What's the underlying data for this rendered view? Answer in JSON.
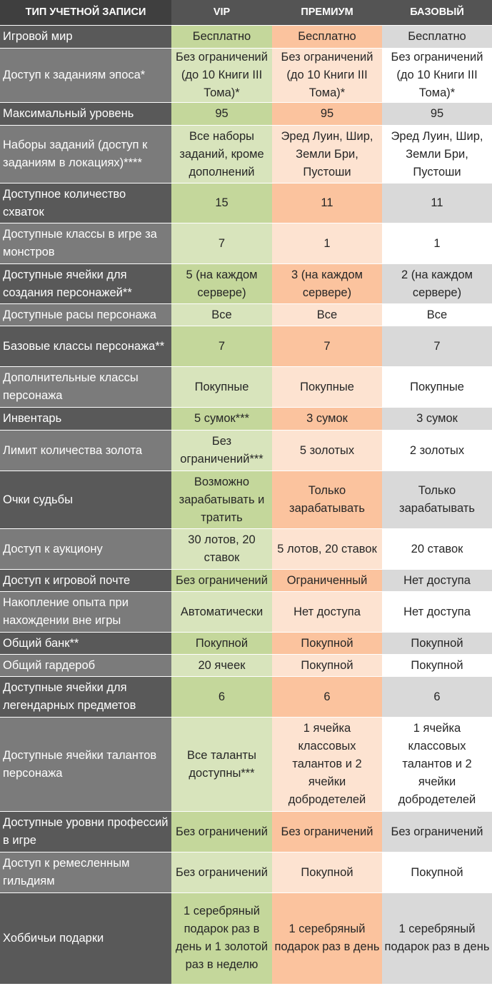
{
  "header": {
    "col0": "ТИП УЧЕТНОЙ ЗАПИСИ",
    "col1": "VIP",
    "col2": "ПРЕМИУМ",
    "col3": "БАЗОВЫЙ"
  },
  "rows": [
    {
      "label": "Игровой мир",
      "vip": "Бесплатно",
      "premium": "Бесплатно",
      "basic": "Бесплатно"
    },
    {
      "label": "Доступ к заданиям эпоса*",
      "vip": "Без ограничений (до 10 Книги III Тома)*",
      "premium": "Без ограничений (до 10 Книги III Тома)*",
      "basic": "Без ограничений (до 10 Книги III Тома)*"
    },
    {
      "label": "Максимальный уровень",
      "vip": "95",
      "premium": "95",
      "basic": "95"
    },
    {
      "label": "Наборы заданий (доступ к заданиям в локациях)****",
      "vip": "Все наборы заданий, кроме дополнений",
      "premium": "Эред Луин, Шир, Земли Бри, Пустоши",
      "basic": "Эред Луин, Шир, Земли Бри, Пустоши"
    },
    {
      "label": "Доступное количество схваток",
      "vip": "15",
      "premium": "11",
      "basic": "11"
    },
    {
      "label": "Доступные классы в игре за монстров",
      "vip": "7",
      "premium": "1",
      "basic": "1"
    },
    {
      "label": "Доступные ячейки для создания персонажей**",
      "vip": "5 (на каждом сервере)",
      "premium": "3 (на каждом сервере)",
      "basic": "2 (на каждом сервере)"
    },
    {
      "label": "Доступные расы персонажа",
      "vip": "Все",
      "premium": "Все",
      "basic": "Все"
    },
    {
      "label": "Базовые классы персонажа**",
      "vip": "7",
      "premium": "7",
      "basic": "7"
    },
    {
      "label": "Дополнительные классы персонажа",
      "vip": "Покупные",
      "premium": "Покупные",
      "basic": "Покупные"
    },
    {
      "label": "Инвентарь",
      "vip": "5 сумок***",
      "premium": "3 сумок",
      "basic": "3 сумок"
    },
    {
      "label": "Лимит количества золота",
      "vip": "Без ограничений***",
      "premium": "5 золотых",
      "basic": "2 золотых"
    },
    {
      "label": "Очки судьбы",
      "vip": "Возможно зарабатывать и тратить",
      "premium": "Только зарабатывать",
      "basic": "Только зарабатывать"
    },
    {
      "label": "Доступ к аукциону",
      "vip": "30 лотов, 20 ставок",
      "premium": "5 лотов, 20 ставок",
      "basic": "20 ставок"
    },
    {
      "label": "Доступ к игровой почте",
      "vip": "Без ограничений",
      "premium": "Ограниченный",
      "basic": "Нет доступа"
    },
    {
      "label": "Накопление опыта при нахождении вне игры",
      "vip": "Автоматически",
      "premium": "Нет доступа",
      "basic": "Нет доступа"
    },
    {
      "label": "Общий банк**",
      "vip": "Покупной",
      "premium": "Покупной",
      "basic": "Покупной"
    },
    {
      "label": "Общий гардероб",
      "vip": "20 ячеек",
      "premium": "Покупной",
      "basic": "Покупной"
    },
    {
      "label": "Доступные ячейки для легендарных предметов",
      "vip": "6",
      "premium": "6",
      "basic": "6"
    },
    {
      "label": "Доступные ячейки талантов персонажа",
      "vip": "Все таланты доступны***",
      "premium": "1 ячейка классовых талантов и 2 ячейки добродетелей",
      "basic": "1 ячейка классовых талантов и 2 ячейки добродетелей"
    },
    {
      "label": "Доступные уровни профессий в игре",
      "vip": "Без ограничений",
      "premium": "Без ограничений",
      "basic": "Без ограничений"
    },
    {
      "label": "Доступ к ремесленным гильдиям",
      "vip": "Без ограничений",
      "premium": "Покупной",
      "basic": "Покупной"
    },
    {
      "label": "Хоббичьи подарки",
      "vip": "1 серебряный подарок раз в день и 1 золотой раз в неделю",
      "premium": "1 серебряный подарок раз в день",
      "basic": "1 серебряный подарок раз в день"
    }
  ]
}
